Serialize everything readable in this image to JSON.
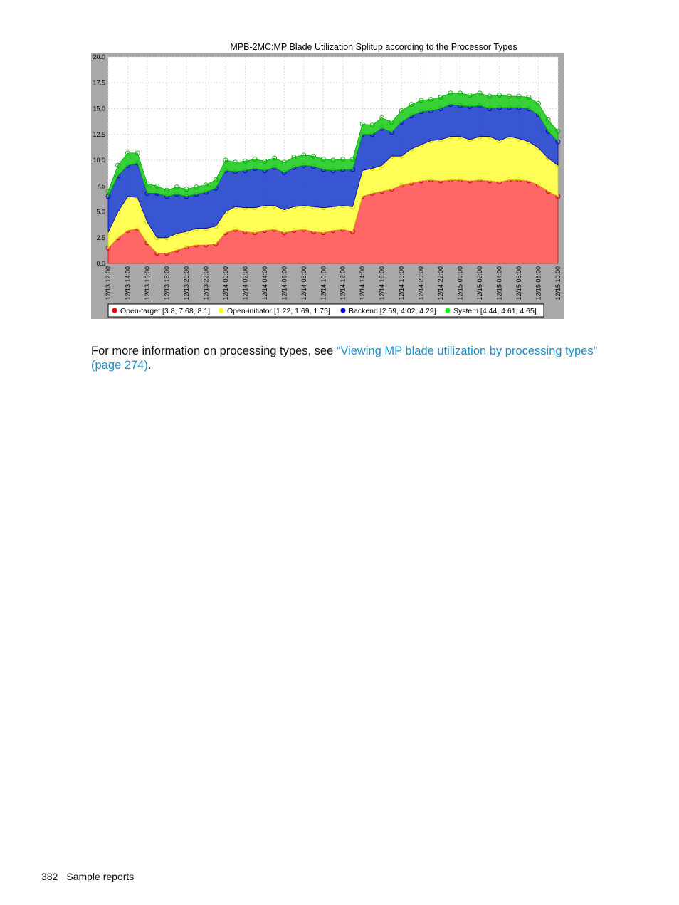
{
  "chart_data": {
    "type": "area",
    "stacked": true,
    "title": "MPB-2MC:MP Blade Utilization Splitup according to the Processor Types",
    "ylim": [
      0,
      20
    ],
    "yticks": [
      "20.0",
      "17.5",
      "15.0",
      "12.5",
      "10.0",
      "7.5",
      "5.0",
      "2.5",
      "0.0"
    ],
    "ytick_values": [
      20,
      17.5,
      15,
      12.5,
      10,
      7.5,
      5,
      2.5,
      0
    ],
    "xlim_hours": [
      0,
      46
    ],
    "x_labels": [
      "12/13 12:00",
      "12/13 14:00",
      "12/13 16:00",
      "12/13 18:00",
      "12/13 20:00",
      "12/13 22:00",
      "12/14 00:00",
      "12/14 02:00",
      "12/14 04:00",
      "12/14 06:00",
      "12/14 08:00",
      "12/14 10:00",
      "12/14 12:00",
      "12/14 14:00",
      "12/14 16:00",
      "12/14 18:00",
      "12/14 20:00",
      "12/14 22:00",
      "12/15 00:00",
      "12/15 02:00",
      "12/15 04:00",
      "12/15 06:00",
      "12/15 08:00",
      "12/15 10:00"
    ],
    "x": [
      "12/13 12:00",
      "12/13 13:00",
      "12/13 14:00",
      "12/13 15:00",
      "12/13 16:00",
      "12/13 17:00",
      "12/13 18:00",
      "12/13 19:00",
      "12/13 20:00",
      "12/13 21:00",
      "12/13 22:00",
      "12/13 23:00",
      "12/14 00:00",
      "12/14 01:00",
      "12/14 02:00",
      "12/14 03:00",
      "12/14 04:00",
      "12/14 05:00",
      "12/14 06:00",
      "12/14 07:00",
      "12/14 08:00",
      "12/14 09:00",
      "12/14 10:00",
      "12/14 11:00",
      "12/14 12:00",
      "12/14 13:00",
      "12/14 14:00",
      "12/14 15:00",
      "12/14 16:00",
      "12/14 17:00",
      "12/14 18:00",
      "12/14 19:00",
      "12/14 20:00",
      "12/14 21:00",
      "12/14 22:00",
      "12/14 23:00",
      "12/15 00:00",
      "12/15 01:00",
      "12/15 02:00",
      "12/15 03:00",
      "12/15 04:00",
      "12/15 05:00",
      "12/15 06:00",
      "12/15 07:00",
      "12/15 08:00",
      "12/15 09:00",
      "12/15 10:00"
    ],
    "x_hours": [
      0,
      1,
      2,
      3,
      4,
      5,
      6,
      7,
      8,
      9,
      10,
      11,
      12,
      13,
      14,
      15,
      16,
      17,
      18,
      19,
      20,
      21,
      22,
      23,
      24,
      25,
      26,
      27,
      28,
      29,
      30,
      31,
      32,
      33,
      34,
      35,
      36,
      37,
      38,
      39,
      40,
      41,
      42,
      43,
      44,
      45,
      46
    ],
    "series": [
      {
        "name": "Open-target",
        "color": "#ff0000",
        "values": [
          1.5,
          2.5,
          3.2,
          3.4,
          2.0,
          1.0,
          1.0,
          1.3,
          1.6,
          1.8,
          1.8,
          1.9,
          3.0,
          3.3,
          3.1,
          3.0,
          3.2,
          3.3,
          3.0,
          3.2,
          3.3,
          3.1,
          3.0,
          3.2,
          3.3,
          3.1,
          6.5,
          6.8,
          7.0,
          7.2,
          7.6,
          7.8,
          8.0,
          8.1,
          8.0,
          8.1,
          8.1,
          8.0,
          8.1,
          8.0,
          7.9,
          8.1,
          8.1,
          8.0,
          7.6,
          7.0,
          6.5
        ]
      },
      {
        "name": "Open-initiator",
        "color": "#ffff00",
        "values": [
          1.5,
          2.5,
          3.3,
          3.0,
          2.0,
          1.5,
          1.5,
          1.6,
          1.5,
          1.6,
          1.6,
          1.7,
          2.0,
          2.2,
          2.3,
          2.4,
          2.4,
          2.3,
          2.2,
          2.3,
          2.3,
          2.4,
          2.4,
          2.3,
          2.3,
          2.4,
          2.5,
          2.4,
          2.5,
          3.2,
          2.8,
          3.3,
          3.5,
          3.8,
          4.0,
          4.2,
          4.2,
          4.0,
          4.2,
          4.3,
          4.0,
          4.2,
          4.0,
          3.8,
          3.6,
          3.2,
          3.0
        ]
      },
      {
        "name": "Backend",
        "color": "#0000ff",
        "values": [
          3.5,
          3.5,
          3.0,
          3.3,
          2.8,
          4.3,
          4.0,
          3.8,
          3.4,
          3.3,
          3.5,
          3.7,
          4.0,
          3.4,
          3.6,
          3.8,
          3.4,
          3.7,
          3.6,
          3.8,
          3.9,
          3.9,
          3.7,
          3.5,
          3.5,
          3.6,
          3.5,
          3.3,
          3.6,
          2.3,
          3.3,
          3.2,
          3.2,
          2.9,
          3.0,
          3.1,
          3.0,
          3.2,
          3.0,
          2.7,
          3.2,
          2.8,
          3.0,
          3.2,
          3.2,
          2.6,
          2.3
        ]
      },
      {
        "name": "System",
        "color": "#00ff00",
        "values": [
          0.5,
          1.0,
          1.2,
          1.0,
          0.9,
          0.7,
          0.6,
          0.7,
          0.7,
          0.7,
          0.7,
          0.8,
          1.0,
          0.9,
          0.9,
          0.9,
          0.9,
          0.9,
          1.0,
          1.0,
          1.0,
          1.0,
          1.0,
          1.0,
          1.0,
          1.0,
          1.0,
          0.9,
          1.0,
          1.0,
          1.1,
          1.1,
          1.1,
          1.1,
          1.1,
          1.1,
          1.2,
          1.1,
          1.2,
          1.2,
          1.2,
          1.1,
          1.1,
          1.1,
          1.1,
          1.1,
          1.0
        ]
      }
    ],
    "legend": [
      {
        "label": "Open-target [3.8, 7.68, 8.1]",
        "color": "#ff0000"
      },
      {
        "label": "Open-initiator [1.22, 1.69, 1.75]",
        "color": "#ffff00"
      },
      {
        "label": "Backend [2.59, 4.02, 4.29]",
        "color": "#0000ff"
      },
      {
        "label": "System [4.44, 4.61, 4.65]",
        "color": "#00ff00"
      }
    ],
    "legend_position": "bottom",
    "grid": true
  },
  "body": {
    "text_before": "For more information on processing types, see ",
    "link_text": "“Viewing MP blade utilization by processing types” (page 274)",
    "text_after": "."
  },
  "footer": {
    "page_number": "382",
    "section": "Sample reports"
  }
}
